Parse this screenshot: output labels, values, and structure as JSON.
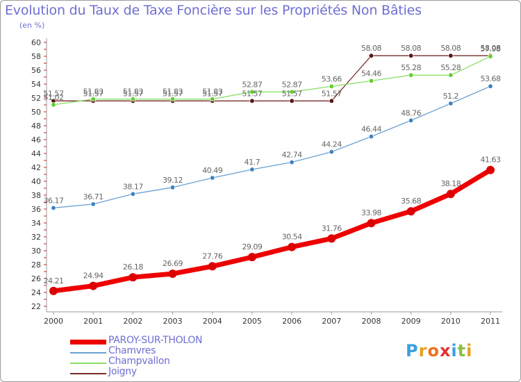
{
  "chart_data": {
    "type": "line",
    "title": "Evolution du Taux de Taxe Foncière sur les Propriétés Non Bâties",
    "subtitle": "(en %)",
    "categories": [
      "2000",
      "2001",
      "2002",
      "2003",
      "2004",
      "2005",
      "2006",
      "2007",
      "2008",
      "2009",
      "2010",
      "2011"
    ],
    "y_ticks": [
      "22",
      "24",
      "26",
      "28",
      "30",
      "32",
      "34",
      "36",
      "38",
      "40",
      "42",
      "44",
      "46",
      "48",
      "50",
      "52",
      "54",
      "56",
      "58",
      "60"
    ],
    "ylim": [
      22,
      60
    ],
    "grid": false,
    "legend_position": "bottom-left",
    "series": [
      {
        "name": "PAROY-SUR-THOLON",
        "color": "#ee0000",
        "dot": "#dd0000",
        "values": [
          24.21,
          24.94,
          26.18,
          26.69,
          27.76,
          29.09,
          30.54,
          31.76,
          33.98,
          35.68,
          38.18,
          41.63
        ],
        "labels": [
          "24.21",
          "24.94",
          "26.18",
          "26.69",
          "27.76",
          "29.09",
          "30.54",
          "31.76",
          "33.98",
          "35.68",
          "38.18",
          "41.63"
        ]
      },
      {
        "name": "Chamvres",
        "color": "#6aa0d2",
        "dot": "#3c82c0",
        "values": [
          36.17,
          36.71,
          38.17,
          39.12,
          40.49,
          41.7,
          42.74,
          44.24,
          46.44,
          48.76,
          51.2,
          53.68
        ],
        "labels": [
          "36.17",
          "36.71",
          "38.17",
          "39.12",
          "40.49",
          "41.7",
          "42.74",
          "44.24",
          "46.44",
          "48.76",
          "51.2",
          "53.68"
        ]
      },
      {
        "name": "Champvallon",
        "color": "#88e066",
        "dot": "#66cc33",
        "values": [
          51.02,
          51.83,
          51.83,
          51.83,
          51.83,
          52.87,
          52.87,
          53.66,
          54.46,
          55.28,
          55.28,
          57.98
        ],
        "labels": [
          "51.02",
          "51.83",
          "51.83",
          "51.83",
          "51.83",
          "52.87",
          "52.87",
          "53.66",
          "54.46",
          "55.28",
          "55.28",
          "57.98"
        ]
      },
      {
        "name": "Joigny",
        "color": "#7a2a2a",
        "dot": "#5a1414",
        "values": [
          51.57,
          51.57,
          51.57,
          51.57,
          51.57,
          51.57,
          51.57,
          51.57,
          58.08,
          58.08,
          58.08,
          58.08
        ],
        "labels": [
          "51.57",
          "51.57",
          "51.57",
          "51.57",
          "51.57",
          "51.57",
          "51.57",
          "51.57",
          "58.08",
          "58.08",
          "58.08",
          "58.08"
        ]
      }
    ]
  },
  "logo": {
    "text": "Proxiti",
    "colors": [
      "#3aa0e0",
      "#e8a020",
      "#f07020",
      "#e03030",
      "#3aa0e0",
      "#88c040",
      "#e8a020"
    ]
  }
}
